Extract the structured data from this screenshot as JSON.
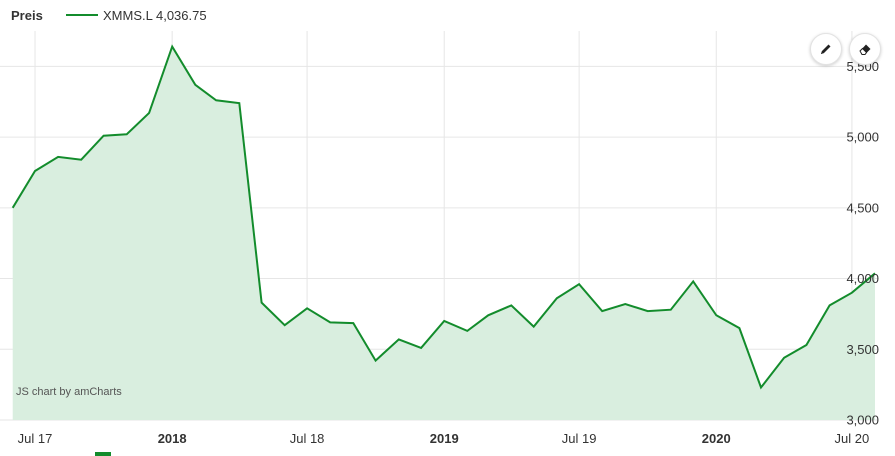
{
  "legend": {
    "title": "Preis",
    "series_label": "XMMS.L 4,036.75"
  },
  "credit": "JS chart by amCharts",
  "tools": [
    {
      "name": "draw-tool-button",
      "icon": "pencil-icon"
    },
    {
      "name": "erase-tool-button",
      "icon": "eraser-icon"
    }
  ],
  "colors": {
    "line": "#138c2c",
    "fill": "#d9eedf",
    "grid": "#e6e6e6"
  },
  "chart_data": {
    "type": "area",
    "title": "",
    "xlabel": "",
    "ylabel": "",
    "ylim": [
      3000,
      5750
    ],
    "xlim": [
      "2017-05-15",
      "2020-08-05"
    ],
    "grid": true,
    "y_ticks": [
      "3,000",
      "3,500",
      "4,000",
      "4,500",
      "5,000",
      "5,500"
    ],
    "y_tick_values": [
      3000,
      3500,
      4000,
      4500,
      5000,
      5500
    ],
    "x_ticks": [
      {
        "label": "Jul 17",
        "date": "2017-07-01",
        "bold": false
      },
      {
        "label": "2018",
        "date": "2018-01-01",
        "bold": true
      },
      {
        "label": "Jul 18",
        "date": "2018-07-01",
        "bold": false
      },
      {
        "label": "2019",
        "date": "2019-01-01",
        "bold": true
      },
      {
        "label": "Jul 19",
        "date": "2019-07-01",
        "bold": false
      },
      {
        "label": "2020",
        "date": "2020-01-01",
        "bold": true
      },
      {
        "label": "Jul 20",
        "date": "2020-07-01",
        "bold": false
      }
    ],
    "series": [
      {
        "name": "XMMS.L",
        "x": [
          "2017-06-01",
          "2017-07-01",
          "2017-08-01",
          "2017-09-01",
          "2017-10-01",
          "2017-11-01",
          "2017-12-01",
          "2018-01-01",
          "2018-02-01",
          "2018-03-01",
          "2018-04-01",
          "2018-05-01",
          "2018-06-01",
          "2018-07-01",
          "2018-08-01",
          "2018-09-01",
          "2018-10-01",
          "2018-11-01",
          "2018-12-01",
          "2019-01-01",
          "2019-02-01",
          "2019-03-01",
          "2019-04-01",
          "2019-05-01",
          "2019-06-01",
          "2019-07-01",
          "2019-08-01",
          "2019-09-01",
          "2019-10-01",
          "2019-11-01",
          "2019-12-01",
          "2020-01-01",
          "2020-02-01",
          "2020-03-01",
          "2020-04-01",
          "2020-05-01",
          "2020-06-01",
          "2020-07-01",
          "2020-08-01"
        ],
        "values": [
          4500,
          4760,
          4860,
          4840,
          5010,
          5020,
          5170,
          5640,
          5370,
          5260,
          5240,
          3830,
          3670,
          3790,
          3690,
          3685,
          3420,
          3570,
          3510,
          3700,
          3630,
          3740,
          3810,
          3660,
          3860,
          3960,
          3770,
          3820,
          3770,
          3780,
          3980,
          3740,
          3650,
          3230,
          3440,
          3530,
          3810,
          3900,
          4036.75
        ]
      }
    ]
  }
}
